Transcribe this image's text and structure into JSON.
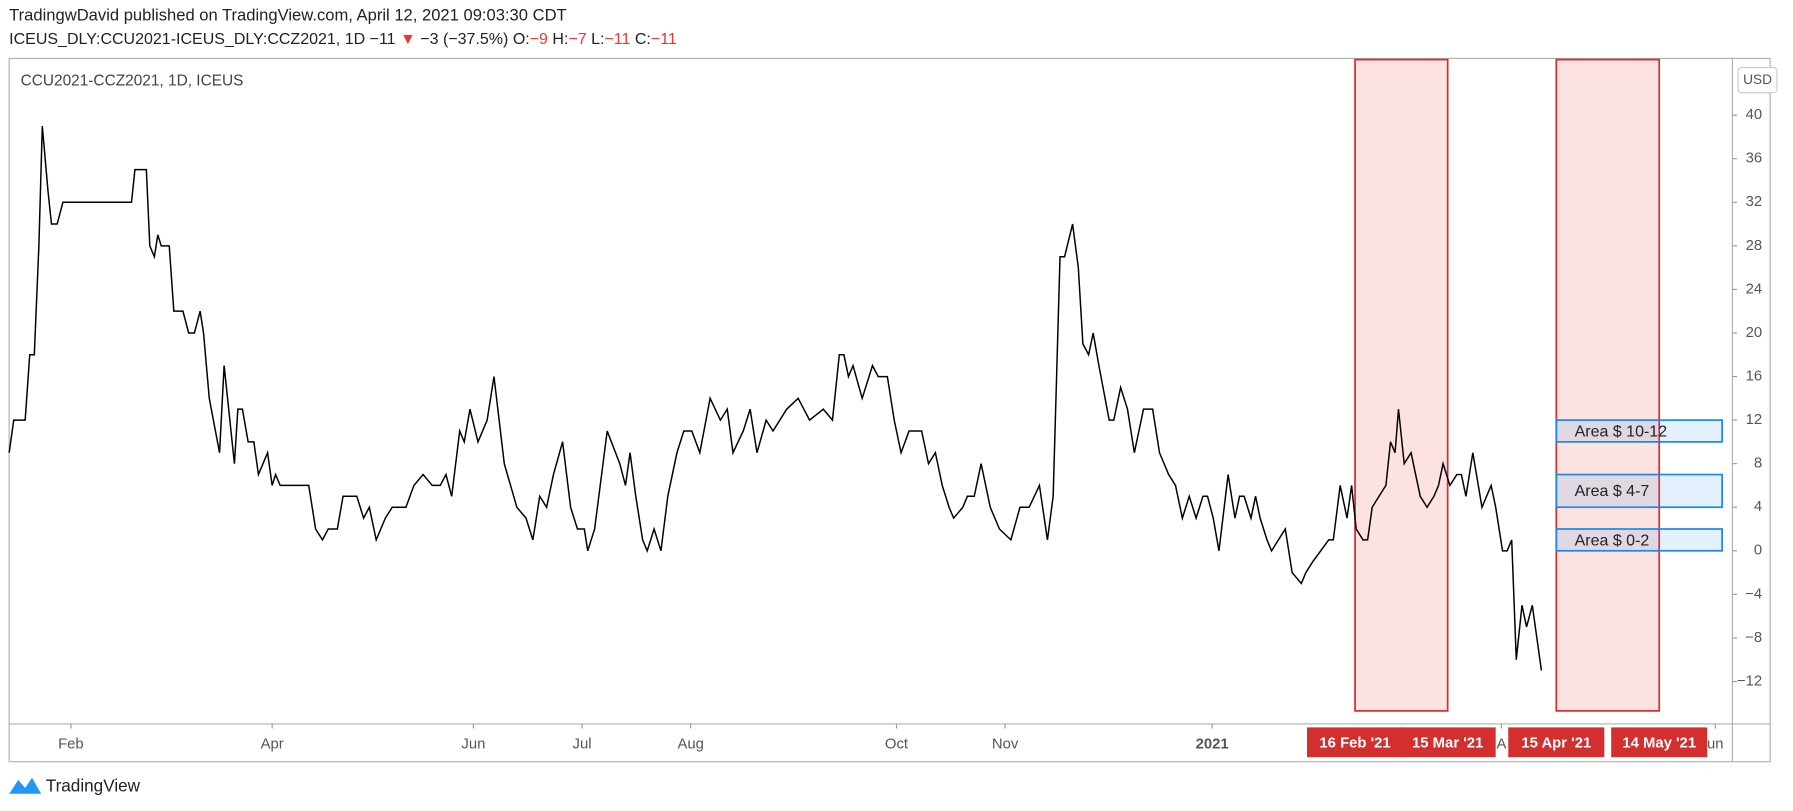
{
  "header": {
    "published": "TradingwDavid published on TradingView.com, April 12, 2021 09:03:30 CDT",
    "symbol": "ICEUS_DLY:CCU2021-ICEUS_DLY:CCZ2021, 1D",
    "last": "−11",
    "arrow": "▼",
    "change": "−3 (−37.5%)",
    "ohlc": [
      {
        "label": "O:",
        "value": "−9"
      },
      {
        "label": "H:",
        "value": "−7"
      },
      {
        "label": "L:",
        "value": "−11"
      },
      {
        "label": "C:",
        "value": "−11"
      }
    ]
  },
  "chart_data": {
    "type": "line",
    "title": "CCU2021-CCZ2021, 1D, ICEUS",
    "currency": "USD",
    "color": "#000000",
    "x": [
      0,
      4,
      14,
      18,
      22,
      26,
      29,
      34,
      37,
      42,
      47,
      107,
      110,
      120,
      123,
      127,
      130,
      133,
      140,
      144,
      152,
      157,
      162,
      167,
      170,
      175,
      184,
      188,
      197,
      200,
      204,
      209,
      214,
      218,
      226,
      230,
      233,
      237,
      262,
      268,
      274,
      279,
      287,
      292,
      304,
      310,
      315,
      321,
      329,
      335,
      347,
      354,
      362,
      370,
      377,
      382,
      387,
      394,
      398,
      403,
      410,
      418,
      424,
      433,
      444,
      452,
      458,
      464,
      470,
      476,
      484,
      491,
      497,
      503,
      506,
      512,
      523,
      534,
      539,
      543,
      548,
      554,
      558,
      564,
      570,
      576,
      584,
      590,
      597,
      604,
      613,
      622,
      628,
      633,
      642,
      648,
      654,
      662,
      668,
      680,
      690,
      700,
      712,
      720,
      726,
      730,
      734,
      738,
      746,
      755,
      760,
      768,
      774,
      780,
      787,
      798,
      804,
      810,
      816,
      822,
      826,
      834,
      838,
      844,
      850,
      858,
      866,
      876,
      884,
      892,
      901,
      908,
      913,
      919,
      923,
      930,
      935,
      939,
      944,
      948,
      953,
      962,
      966,
      972,
      978,
      984,
      992,
      1000,
      1006,
      1014,
      1020,
      1026,
      1032,
      1038,
      1044,
      1048,
      1053,
      1058,
      1066,
      1072,
      1076,
      1080,
      1086,
      1090,
      1094,
      1100,
      1104,
      1110,
      1116,
      1122,
      1130,
      1134,
      1140,
      1147,
      1154,
      1158,
      1164,
      1170,
      1174,
      1178,
      1184,
      1188,
      1192,
      1198,
      1204,
      1208,
      1212,
      1215,
      1220,
      1226,
      1230,
      1234,
      1240,
      1246,
      1250,
      1254,
      1260,
      1266,
      1270,
      1274,
      1280,
      1288,
      1296,
      1300,
      1306,
      1310,
      1314,
      1318,
      1323,
      1327,
      1332,
      1336,
      1340
    ],
    "values": [
      9,
      12,
      12,
      18,
      18,
      28,
      39,
      33,
      30,
      30,
      32,
      32,
      35,
      35,
      28,
      27,
      29,
      28,
      28,
      22,
      22,
      20,
      20,
      22,
      20,
      14,
      9,
      17,
      8,
      13,
      13,
      10,
      10,
      7,
      9,
      6,
      7,
      6,
      6,
      2,
      1,
      2,
      2,
      5,
      5,
      3,
      4,
      1,
      3,
      4,
      4,
      6,
      7,
      6,
      6,
      7,
      5,
      11,
      10,
      13,
      10,
      12,
      16,
      8,
      4,
      3,
      1,
      5,
      4,
      7,
      10,
      4,
      2,
      2,
      0,
      2,
      11,
      8,
      6,
      9,
      5,
      1,
      0,
      2,
      0,
      5,
      9,
      11,
      11,
      9,
      14,
      12,
      13,
      9,
      11,
      13,
      9,
      12,
      11,
      13,
      14,
      12,
      13,
      12,
      18,
      18,
      16,
      17,
      14,
      17,
      16,
      16,
      12,
      9,
      11,
      11,
      8,
      9,
      6,
      4,
      3,
      4,
      5,
      5,
      8,
      4,
      2,
      1,
      4,
      4,
      6,
      1,
      5,
      27,
      27,
      30,
      26,
      19,
      18,
      20,
      17,
      12,
      12,
      15,
      13,
      9,
      13,
      13,
      9,
      7,
      6,
      3,
      5,
      3,
      5,
      5,
      3,
      0,
      7,
      3,
      5,
      5,
      3,
      5,
      3,
      1,
      0,
      1,
      2,
      -2,
      -3,
      -2,
      -1,
      0,
      1,
      1,
      6,
      3,
      6,
      2,
      1,
      1,
      4,
      5,
      6,
      10,
      9,
      13,
      8,
      9,
      7,
      5,
      4,
      5,
      6,
      8,
      6,
      7,
      7,
      5,
      9,
      4,
      6,
      4,
      0,
      0,
      1,
      -10,
      -5,
      -7,
      -5,
      -8,
      -11
    ],
    "xlim": [
      0,
      1507
    ],
    "ylim": [
      -15.9,
      45.1
    ],
    "yticks": [
      {
        "value": -12,
        "label": "−12"
      },
      {
        "value": -8,
        "label": "−8"
      },
      {
        "value": -4,
        "label": "−4"
      },
      0,
      4,
      8,
      12,
      16,
      20,
      24,
      28,
      32,
      36,
      40
    ],
    "xticks": [
      {
        "value": 54,
        "label": "Feb"
      },
      {
        "value": 230,
        "label": "Apr"
      },
      {
        "value": 406,
        "label": "Jun"
      },
      {
        "value": 501,
        "label": "Jul"
      },
      {
        "value": 596,
        "label": "Aug"
      },
      {
        "value": 776,
        "label": "Oct"
      },
      {
        "value": 871,
        "label": "Nov"
      },
      {
        "value": 1052,
        "label": "2021"
      },
      {
        "value": 1305,
        "label": "A"
      },
      {
        "value": 1492,
        "label": "un"
      }
    ],
    "regions": [
      {
        "x": [
          1177,
          1258
        ],
        "y": [
          -14.7,
          45.1
        ],
        "labels": [
          "16 Feb '21",
          "15 Mar '21"
        ]
      },
      {
        "x": [
          1353,
          1443
        ],
        "y": [
          -14.7,
          45.1
        ],
        "labels": [
          "15 Apr '21",
          "14 May '21"
        ]
      }
    ],
    "boxes": [
      {
        "label": "Area $ 10-12",
        "x": [
          1353,
          1498
        ],
        "y": [
          10,
          12
        ]
      },
      {
        "label": "Area $ 4-7",
        "x": [
          1353,
          1498
        ],
        "y": [
          4,
          7
        ]
      },
      {
        "label": "Area $ 0-2",
        "x": [
          1353,
          1498
        ],
        "y": [
          0,
          2
        ]
      }
    ]
  },
  "footer": {
    "brand": "TradingView"
  }
}
